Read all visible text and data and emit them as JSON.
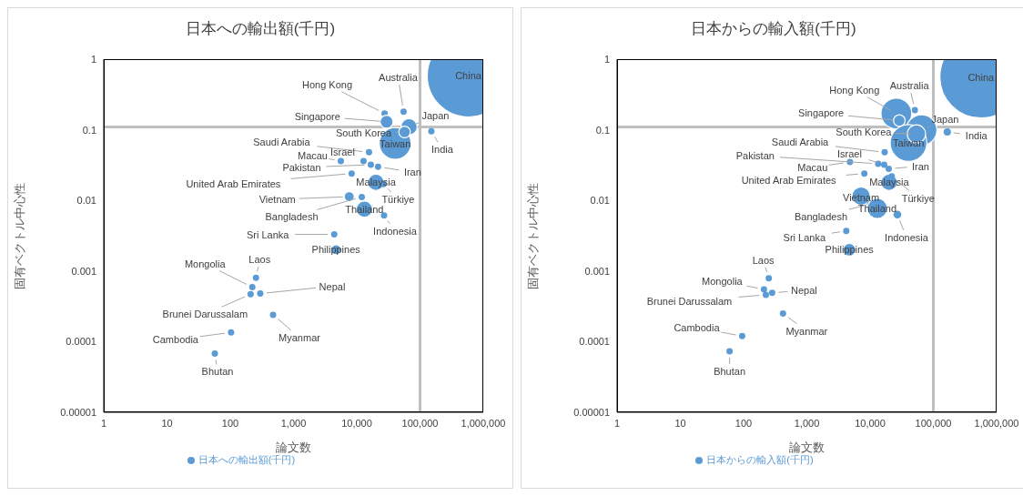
{
  "chart_data": [
    {
      "type": "bubble",
      "title": "日本への輸出額(千円)",
      "xlabel": "論文数",
      "ylabel": "固有ベクトル中心性",
      "log": "xy",
      "grid": false,
      "legend": "bottom",
      "marker": "circle",
      "xlim": [
        1,
        1000000
      ],
      "xticks": [
        1,
        10,
        100,
        {
          "value": 1000,
          "label": "1,000"
        },
        {
          "value": 10000,
          "label": "10,000"
        },
        {
          "value": 100000,
          "label": "100,000"
        },
        {
          "value": 1000000,
          "label": "1,000,000"
        }
      ],
      "ylim": [
        1e-05,
        1
      ],
      "yticks": [
        {
          "value": 1e-05,
          "label": "0.00001"
        },
        0.0001,
        0.001,
        0.01,
        0.1,
        1
      ],
      "x": [
        580000,
        55000,
        27500,
        29600,
        67000,
        40500,
        57000,
        151000,
        15600,
        5600,
        12800,
        16700,
        21700,
        8300,
        20100,
        26500,
        7600,
        12000,
        13200,
        27000,
        4400,
        4700,
        255,
        223,
        210,
        298,
        475,
        103,
        57
      ],
      "series": [
        {
          "name": "日本への輸出額(千円)",
          "color": "#5b9bd5",
          "values": [
            0.58,
            0.18,
            0.17,
            0.13,
            0.11,
            0.064,
            0.093,
            0.095,
            0.048,
            0.036,
            0.036,
            0.032,
            0.03,
            0.024,
            0.018,
            0.017,
            0.0113,
            0.0112,
            0.0075,
            0.0061,
            0.0033,
            0.002,
            0.0008,
            0.00059,
            0.00047,
            0.00048,
            0.00024,
            0.000135,
            6.8e-05
          ],
          "sizes": [
            1,
            0.006,
            0.006,
            0.025,
            0.04,
            0.15,
            0.02,
            0.006,
            0.006,
            0.006,
            0.006,
            0.006,
            0.006,
            0.006,
            0.04,
            0.006,
            0.015,
            0.006,
            0.04,
            0.006,
            0.006,
            0.015,
            0.006,
            0.006,
            0.006,
            0.006,
            0.006,
            0.006,
            0.006
          ]
        }
      ],
      "ref_lines": [
        {
          "axis": "x",
          "value": 100000,
          "color": "#bfbfbf"
        },
        {
          "axis": "y",
          "value": 0.11,
          "color": "#bfbfbf"
        }
      ],
      "annotations": [
        {
          "text": "China",
          "x": 580000,
          "y": 0.58
        },
        {
          "text": "Australia",
          "x": 55000,
          "y": 0.18
        },
        {
          "text": "Hong Kong",
          "x": 27500,
          "y": 0.17
        },
        {
          "text": "Singapore",
          "x": 29600,
          "y": 0.13
        },
        {
          "text": "Japan",
          "x": 67000,
          "y": 0.11
        },
        {
          "text": "Taiwan",
          "x": 40500,
          "y": 0.064
        },
        {
          "text": "South Korea",
          "x": 57000,
          "y": 0.093
        },
        {
          "text": "India",
          "x": 151000,
          "y": 0.095
        },
        {
          "text": "Saudi Arabia",
          "x": 15600,
          "y": 0.048
        },
        {
          "text": "Macau",
          "x": 5600,
          "y": 0.036
        },
        {
          "text": "Israel",
          "x": 12800,
          "y": 0.036
        },
        {
          "text": "Pakistan",
          "x": 16700,
          "y": 0.032
        },
        {
          "text": "Iran",
          "x": 21700,
          "y": 0.03
        },
        {
          "text": "United Arab Emirates",
          "x": 8300,
          "y": 0.024
        },
        {
          "text": "Malaysia",
          "x": 20100,
          "y": 0.018
        },
        {
          "text": "Türkiye",
          "x": 26500,
          "y": 0.017
        },
        {
          "text": "Vietnam",
          "x": 7600,
          "y": 0.0113
        },
        {
          "text": "Bangladesh",
          "x": 12000,
          "y": 0.0112
        },
        {
          "text": "Thailand",
          "x": 13200,
          "y": 0.0075
        },
        {
          "text": "Indonesia",
          "x": 27000,
          "y": 0.0061
        },
        {
          "text": "Sri Lanka",
          "x": 4400,
          "y": 0.0033
        },
        {
          "text": "Philippines",
          "x": 4700,
          "y": 0.002
        },
        {
          "text": "Laos",
          "x": 255,
          "y": 0.0008
        },
        {
          "text": "Mongolia",
          "x": 223,
          "y": 0.00059
        },
        {
          "text": "Brunei Darussalam",
          "x": 210,
          "y": 0.00047
        },
        {
          "text": "Nepal",
          "x": 298,
          "y": 0.00048
        },
        {
          "text": "Myanmar",
          "x": 475,
          "y": 0.00024
        },
        {
          "text": "Cambodia",
          "x": 103,
          "y": 0.000135
        },
        {
          "text": "Bhutan",
          "x": 57,
          "y": 6.8e-05
        }
      ]
    },
    {
      "type": "bubble",
      "title": "日本からの輸入額(千円)",
      "xlabel": "論文数",
      "ylabel": "固有ベクトル中心性",
      "log": "xy",
      "grid": false,
      "legend": "bottom",
      "marker": "circle",
      "xlim": [
        1,
        1000000
      ],
      "xticks": [
        1,
        10,
        100,
        {
          "value": 1000,
          "label": "1,000"
        },
        {
          "value": 10000,
          "label": "10,000"
        },
        {
          "value": 100000,
          "label": "100,000"
        },
        {
          "value": 1000000,
          "label": "1,000,000"
        }
      ],
      "ylim": [
        1e-05,
        1
      ],
      "yticks": [
        {
          "value": 1e-05,
          "label": "0.00001"
        },
        0.0001,
        0.001,
        0.01,
        0.1,
        1
      ],
      "x": [
        565000,
        51000,
        26000,
        29000,
        65000,
        40500,
        54000,
        166000,
        17000,
        4800,
        16700,
        13400,
        19700,
        8100,
        20000,
        22000,
        7200,
        10000,
        13000,
        27000,
        4200,
        4700,
        250,
        210,
        225,
        283,
        420,
        95,
        60
      ],
      "series": [
        {
          "name": "日本からの輸入額(千円)",
          "color": "#5b9bd5",
          "values": [
            0.56,
            0.19,
            0.17,
            0.135,
            0.099,
            0.065,
            0.087,
            0.093,
            0.048,
            0.035,
            0.032,
            0.033,
            0.028,
            0.024,
            0.018,
            0.022,
            0.0115,
            0.0089,
            0.0077,
            0.0063,
            0.0037,
            0.002,
            0.00079,
            0.00055,
            0.00046,
            0.00049,
            0.00025,
            0.00012,
            7.3e-05
          ],
          "sizes": [
            1,
            0.006,
            0.14,
            0.02,
            0.14,
            0.2,
            0.05,
            0.008,
            0.006,
            0.006,
            0.006,
            0.006,
            0.006,
            0.006,
            0.04,
            0.006,
            0.05,
            0.006,
            0.06,
            0.012,
            0.006,
            0.024,
            0.006,
            0.006,
            0.006,
            0.006,
            0.006,
            0.006,
            0.006
          ]
        }
      ],
      "ref_lines": [
        {
          "axis": "x",
          "value": 100000,
          "color": "#bfbfbf"
        },
        {
          "axis": "y",
          "value": 0.11,
          "color": "#bfbfbf"
        }
      ],
      "annotations": [
        {
          "text": "China",
          "x": 565000,
          "y": 0.56
        },
        {
          "text": "Australia",
          "x": 51000,
          "y": 0.19
        },
        {
          "text": "Hong Kong",
          "x": 26000,
          "y": 0.17
        },
        {
          "text": "Singapore",
          "x": 29000,
          "y": 0.135
        },
        {
          "text": "Japan",
          "x": 65000,
          "y": 0.099
        },
        {
          "text": "Taiwan",
          "x": 40500,
          "y": 0.065
        },
        {
          "text": "South Korea",
          "x": 54000,
          "y": 0.087
        },
        {
          "text": "India",
          "x": 166000,
          "y": 0.093
        },
        {
          "text": "Saudi Arabia",
          "x": 17000,
          "y": 0.048
        },
        {
          "text": "Macau",
          "x": 4800,
          "y": 0.035
        },
        {
          "text": "Israel",
          "x": 16700,
          "y": 0.032
        },
        {
          "text": "Pakistan",
          "x": 13400,
          "y": 0.033
        },
        {
          "text": "Iran",
          "x": 19700,
          "y": 0.028
        },
        {
          "text": "United Arab Emirates",
          "x": 8100,
          "y": 0.024
        },
        {
          "text": "Malaysia",
          "x": 20000,
          "y": 0.018
        },
        {
          "text": "Türkiye",
          "x": 22000,
          "y": 0.022
        },
        {
          "text": "Vietnam",
          "x": 7200,
          "y": 0.0115
        },
        {
          "text": "Bangladesh",
          "x": 10000,
          "y": 0.0089
        },
        {
          "text": "Thailand",
          "x": 13000,
          "y": 0.0077
        },
        {
          "text": "Indonesia",
          "x": 27000,
          "y": 0.0063
        },
        {
          "text": "Sri Lanka",
          "x": 4200,
          "y": 0.0037
        },
        {
          "text": "Philippines",
          "x": 4700,
          "y": 0.002
        },
        {
          "text": "Laos",
          "x": 250,
          "y": 0.00079
        },
        {
          "text": "Mongolia",
          "x": 210,
          "y": 0.00055
        },
        {
          "text": "Brunei Darussalam",
          "x": 225,
          "y": 0.00046
        },
        {
          "text": "Nepal",
          "x": 283,
          "y": 0.00049
        },
        {
          "text": "Myanmar",
          "x": 420,
          "y": 0.00025
        },
        {
          "text": "Cambodia",
          "x": 95,
          "y": 0.00012
        },
        {
          "text": "Bhutan",
          "x": 60,
          "y": 7.3e-05
        }
      ]
    }
  ]
}
